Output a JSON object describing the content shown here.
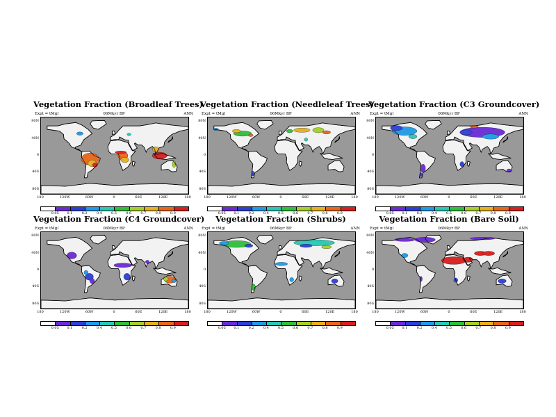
{
  "common": {
    "subtitle_left": "Expt = tMgl",
    "subtitle_center": "06Mkyr BP",
    "subtitle_right": "ANN",
    "lat_labels": [
      "80N",
      "40N",
      "0",
      "40S",
      "80S"
    ],
    "lon_labels": [
      "180",
      "120W",
      "60W",
      "0",
      "60E",
      "120E",
      "180"
    ],
    "colorbar_labels": [
      "0.05",
      "0.1",
      "0.2",
      "0.4",
      "0.5",
      "0.6",
      "0.7",
      "0.8",
      "0.9"
    ],
    "colorbar_colors": [
      "#ffffff",
      "#6a2bd6",
      "#2b3fd6",
      "#1f9ae8",
      "#28c8b4",
      "#2fbf3a",
      "#a6cf28",
      "#e6b01e",
      "#e8661a",
      "#d81e1e"
    ],
    "ocean_color": "#999999",
    "land_color": "#f2f2f2"
  },
  "panels": [
    {
      "title": "Vegetation Fraction (Broadleaf Trees)"
    },
    {
      "title": "Vegetation Fraction (Needleleaf Trees)"
    },
    {
      "title": "Vegetation Fraction (C3 Groundcover)"
    },
    {
      "title": "Vegetation Fraction (C4 Groundcover)"
    },
    {
      "title": "Vegetation Fraction (Shrubs)"
    },
    {
      "title": "Vegetation Fraction (Bare Soil)"
    }
  ]
}
